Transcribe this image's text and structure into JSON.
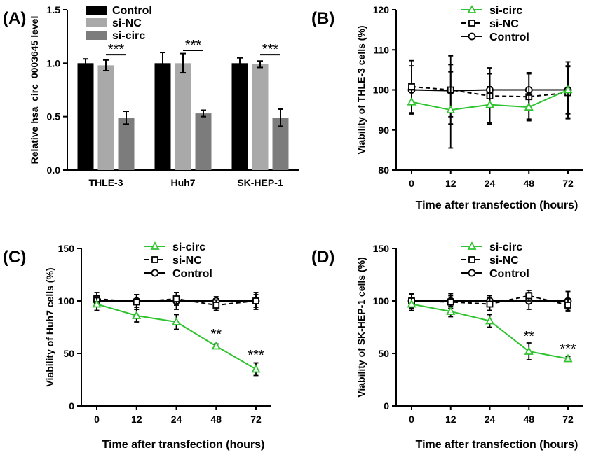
{
  "colors": {
    "control": "#000000",
    "si_nc_bar": "#a9a9a9",
    "si_circ_bar": "#7c7c7c",
    "si_circ_line": "#2fc42f",
    "axis": "#000000"
  },
  "chart_data": [
    {
      "id": "A",
      "panel_label": "(A)",
      "type": "bar",
      "ylabel": "Relative hsa_circ_0003645 level",
      "xlabel": "",
      "ylim": [
        0,
        1.5
      ],
      "yticks": [
        0.0,
        0.5,
        1.0,
        1.5
      ],
      "ytick_labels": [
        "0.0",
        "0.5",
        "1.0",
        "1.5"
      ],
      "categories": [
        "THLE-3",
        "Huh7",
        "SK-HEP-1"
      ],
      "legend_position": "top-left",
      "series": [
        {
          "name": "Control",
          "key": "control",
          "values": [
            1.0,
            1.0,
            1.0
          ],
          "errors": [
            0.04,
            0.1,
            0.05
          ]
        },
        {
          "name": "si-NC",
          "key": "si_nc",
          "values": [
            0.98,
            1.0,
            0.99
          ],
          "errors": [
            0.05,
            0.09,
            0.03
          ]
        },
        {
          "name": "si-circ",
          "key": "si_circ",
          "values": [
            0.49,
            0.53,
            0.49
          ],
          "errors": [
            0.06,
            0.03,
            0.08
          ]
        }
      ],
      "annotations": [
        {
          "text": "***",
          "category_index": 0,
          "from_series": 1,
          "to_series": 2,
          "y": 1.08
        },
        {
          "text": "***",
          "category_index": 1,
          "from_series": 1,
          "to_series": 2,
          "y": 1.12
        },
        {
          "text": "***",
          "category_index": 2,
          "from_series": 1,
          "to_series": 2,
          "y": 1.08
        }
      ]
    },
    {
      "id": "B",
      "panel_label": "(B)",
      "type": "line",
      "ylabel": "Viability of THLE-3 cells (%)",
      "xlabel": "Time after transfection (hours)",
      "categories": [
        "0",
        "12",
        "24",
        "48",
        "72"
      ],
      "ylim": [
        80,
        120
      ],
      "yticks": [
        80,
        90,
        100,
        110,
        120
      ],
      "legend_position": "top-right",
      "series": [
        {
          "name": "si-circ",
          "key": "si_circ",
          "values": [
            97,
            95,
            96.3,
            95.7,
            100
          ],
          "errors": [
            3,
            9.5,
            4.5,
            3,
            6
          ]
        },
        {
          "name": "si-NC",
          "key": "si_nc",
          "values": [
            100.8,
            100,
            98.5,
            98.3,
            99.3
          ],
          "errors": [
            6.5,
            8.5,
            7,
            6,
            6.5
          ]
        },
        {
          "name": "Control",
          "key": "control",
          "values": [
            100,
            99.8,
            100,
            100,
            100
          ],
          "errors": [
            6,
            6.5,
            4,
            4,
            7
          ]
        }
      ],
      "annotations": []
    },
    {
      "id": "C",
      "panel_label": "(C)",
      "type": "line",
      "ylabel": "Viability of Huh7 cells (%)",
      "xlabel": "Time after transfection (hours)",
      "categories": [
        "0",
        "12",
        "24",
        "48",
        "72"
      ],
      "ylim": [
        0,
        150
      ],
      "yticks": [
        0,
        50,
        100,
        150
      ],
      "legend_position": "top-right",
      "series": [
        {
          "name": "si-circ",
          "key": "si_circ",
          "values": [
            97,
            86,
            80,
            57,
            35
          ],
          "errors": [
            6,
            6,
            7,
            2,
            6
          ]
        },
        {
          "name": "si-NC",
          "key": "si_nc",
          "values": [
            102,
            99,
            102,
            96,
            100
          ],
          "errors": [
            6,
            7,
            6,
            5,
            6
          ]
        },
        {
          "name": "Control",
          "key": "control",
          "values": [
            100,
            100,
            100,
            100,
            100
          ],
          "errors": [
            5,
            6,
            8,
            4,
            8
          ]
        }
      ],
      "annotations": [
        {
          "text": "**",
          "x_index": 3,
          "y": 64
        },
        {
          "text": "***",
          "x_index": 4,
          "y": 44
        }
      ]
    },
    {
      "id": "D",
      "panel_label": "(D)",
      "type": "line",
      "ylabel": "Viability of SK-HEP-1 cells (%)",
      "xlabel": "Time after transfection (hours)",
      "categories": [
        "0",
        "12",
        "24",
        "48",
        "72"
      ],
      "ylim": [
        0,
        150
      ],
      "yticks": [
        0,
        50,
        100,
        150
      ],
      "legend_position": "top-right",
      "series": [
        {
          "name": "si-circ",
          "key": "si_circ",
          "values": [
            97,
            90,
            81,
            52,
            45
          ],
          "errors": [
            6,
            5,
            6,
            8,
            2
          ]
        },
        {
          "name": "si-NC",
          "key": "si_nc",
          "values": [
            100,
            99,
            97,
            105,
            96
          ],
          "errors": [
            6,
            6,
            6,
            5,
            6
          ]
        },
        {
          "name": "Control",
          "key": "control",
          "values": [
            100,
            100,
            100,
            100,
            100
          ],
          "errors": [
            7,
            7,
            5,
            8,
            9
          ]
        }
      ],
      "annotations": [
        {
          "text": "**",
          "x_index": 3,
          "y": 62
        },
        {
          "text": "***",
          "x_index": 4,
          "y": 50
        }
      ]
    }
  ]
}
